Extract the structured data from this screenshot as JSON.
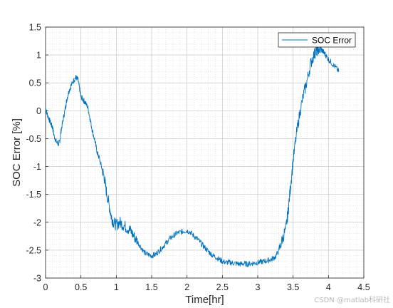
{
  "chart_data": {
    "type": "line",
    "xlabel": "Time[hr]",
    "ylabel": "SOC Error [%]",
    "xlim": [
      0,
      4.5
    ],
    "ylim": [
      -3,
      1.5
    ],
    "xticks": [
      "0",
      "0.5",
      "1",
      "1.5",
      "2",
      "2.5",
      "3",
      "3.5",
      "4",
      "4.5"
    ],
    "yticks": [
      "1.5",
      "1",
      "0.5",
      "0",
      "-0.5",
      "-1",
      "-1.5",
      "-2",
      "-2.5",
      "-3"
    ],
    "grid": "on, minor dotted",
    "legend_position": "top-right",
    "series": [
      {
        "name": "SOC Error",
        "color": "#0072BD",
        "x": [
          0,
          0.02,
          0.05,
          0.08,
          0.1,
          0.12,
          0.15,
          0.18,
          0.2,
          0.22,
          0.25,
          0.28,
          0.3,
          0.33,
          0.36,
          0.4,
          0.43,
          0.46,
          0.48,
          0.5,
          0.53,
          0.56,
          0.6,
          0.63,
          0.66,
          0.7,
          0.73,
          0.76,
          0.8,
          0.83,
          0.86,
          0.9,
          0.93,
          0.96,
          1.0,
          1.05,
          1.1,
          1.15,
          1.2,
          1.25,
          1.3,
          1.35,
          1.4,
          1.45,
          1.5,
          1.55,
          1.6,
          1.65,
          1.7,
          1.75,
          1.8,
          1.85,
          1.9,
          1.95,
          2.0,
          2.05,
          2.1,
          2.15,
          2.2,
          2.25,
          2.3,
          2.35,
          2.4,
          2.45,
          2.5,
          2.55,
          2.6,
          2.65,
          2.7,
          2.75,
          2.8,
          2.85,
          2.9,
          2.95,
          3.0,
          3.05,
          3.1,
          3.15,
          3.2,
          3.25,
          3.3,
          3.35,
          3.4,
          3.43,
          3.46,
          3.5,
          3.55,
          3.6,
          3.65,
          3.7,
          3.75,
          3.8,
          3.83,
          3.86,
          3.9,
          3.93,
          3.96,
          4.0,
          4.05,
          4.1,
          4.15
        ],
        "y": [
          0.05,
          -0.05,
          -0.15,
          -0.25,
          -0.3,
          -0.45,
          -0.55,
          -0.6,
          -0.55,
          -0.35,
          -0.15,
          0.05,
          0.2,
          0.35,
          0.45,
          0.55,
          0.6,
          0.55,
          0.4,
          0.25,
          0.2,
          0.15,
          0.05,
          -0.15,
          -0.35,
          -0.55,
          -0.75,
          -0.85,
          -1.05,
          -1.2,
          -1.45,
          -1.7,
          -1.9,
          -2.0,
          -2.05,
          -2.0,
          -2.05,
          -2.1,
          -2.15,
          -2.25,
          -2.35,
          -2.45,
          -2.55,
          -2.58,
          -2.6,
          -2.58,
          -2.52,
          -2.45,
          -2.38,
          -2.3,
          -2.25,
          -2.2,
          -2.18,
          -2.16,
          -2.15,
          -2.18,
          -2.25,
          -2.3,
          -2.38,
          -2.45,
          -2.52,
          -2.58,
          -2.62,
          -2.66,
          -2.7,
          -2.72,
          -2.72,
          -2.73,
          -2.74,
          -2.75,
          -2.74,
          -2.75,
          -2.74,
          -2.73,
          -2.72,
          -2.71,
          -2.7,
          -2.68,
          -2.66,
          -2.62,
          -2.5,
          -2.3,
          -2.1,
          -1.8,
          -1.4,
          -0.9,
          -0.4,
          0.0,
          0.3,
          0.55,
          0.85,
          1.02,
          1.08,
          1.1,
          1.1,
          1.05,
          1.0,
          0.92,
          0.85,
          0.78,
          0.7
        ]
      }
    ]
  },
  "watermark": "CSDN @matlab科研社"
}
